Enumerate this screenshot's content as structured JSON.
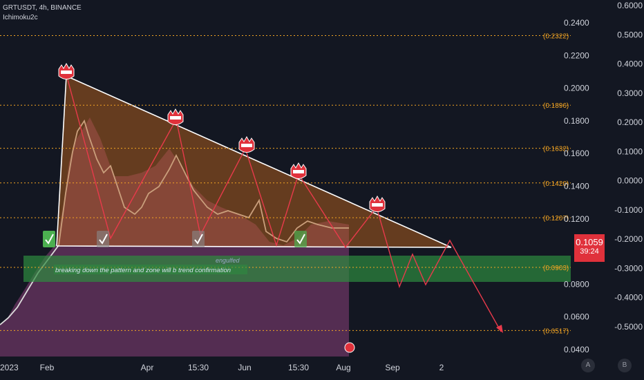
{
  "header": {
    "symbol_line": "GRTUSDT, 4h, BINANCE",
    "indicator": "Ichimoku2c"
  },
  "price_badge": {
    "price": "0.1059",
    "countdown": "39:24"
  },
  "annotations": {
    "engulfed": "engulfed",
    "breakdown_note": "breaking down the pattern and zone will b trend confirmation"
  },
  "bottom_buttons": {
    "a": "A",
    "b": "B"
  },
  "colors": {
    "background": "#131722",
    "triangle_fill": "#b8621b",
    "lower_fill": "#8a3f7a",
    "zone": "#2e8b3f",
    "fib_line": "#f5a623",
    "resistance": "#ffffff",
    "zigzag": "#e83a4b",
    "check": "#4caf50",
    "badge": "#e0313b"
  },
  "chart_data": {
    "type": "line",
    "title": "",
    "price_axis": {
      "ticks": [
        "0.2400",
        "0.2200",
        "0.2000",
        "0.1800",
        "0.1600",
        "0.1400",
        "0.1200",
        "0.0800",
        "0.0600",
        "0.0400"
      ],
      "values": [
        0.24,
        0.22,
        0.2,
        0.18,
        0.16,
        0.14,
        0.12,
        0.08,
        0.06,
        0.04
      ]
    },
    "secondary_axis": {
      "ticks": [
        "0.6000",
        "0.5000",
        "0.4000",
        "0.3000",
        "0.2000",
        "0.1000",
        "0.0000",
        "-0.1000",
        "-0.2000",
        "-0.3000",
        "-0.4000",
        "-0.5000"
      ],
      "values": [
        0.6,
        0.5,
        0.4,
        0.3,
        0.2,
        0.1,
        0.0,
        -0.1,
        -0.2,
        -0.3,
        -0.4,
        -0.5
      ]
    },
    "time_axis": [
      "2023",
      "Feb",
      "Apr",
      "15:30",
      "Jun",
      "15:30",
      "Aug",
      "Sep",
      "2"
    ],
    "fib_levels": [
      {
        "label": "(0.2322)",
        "value": 0.2322
      },
      {
        "label": "(0.1896)",
        "value": 0.1896
      },
      {
        "label": "(0.1632)",
        "value": 0.1632
      },
      {
        "label": "(0.1420)",
        "value": 0.142
      },
      {
        "label": "(0.1207)",
        "value": 0.1207
      },
      {
        "label": "(0.0903)",
        "value": 0.0903
      },
      {
        "label": "(0.0517)",
        "value": 0.0517
      }
    ],
    "demand_zone": [
      0.081,
      0.097
    ],
    "current_price": 0.1059
  }
}
